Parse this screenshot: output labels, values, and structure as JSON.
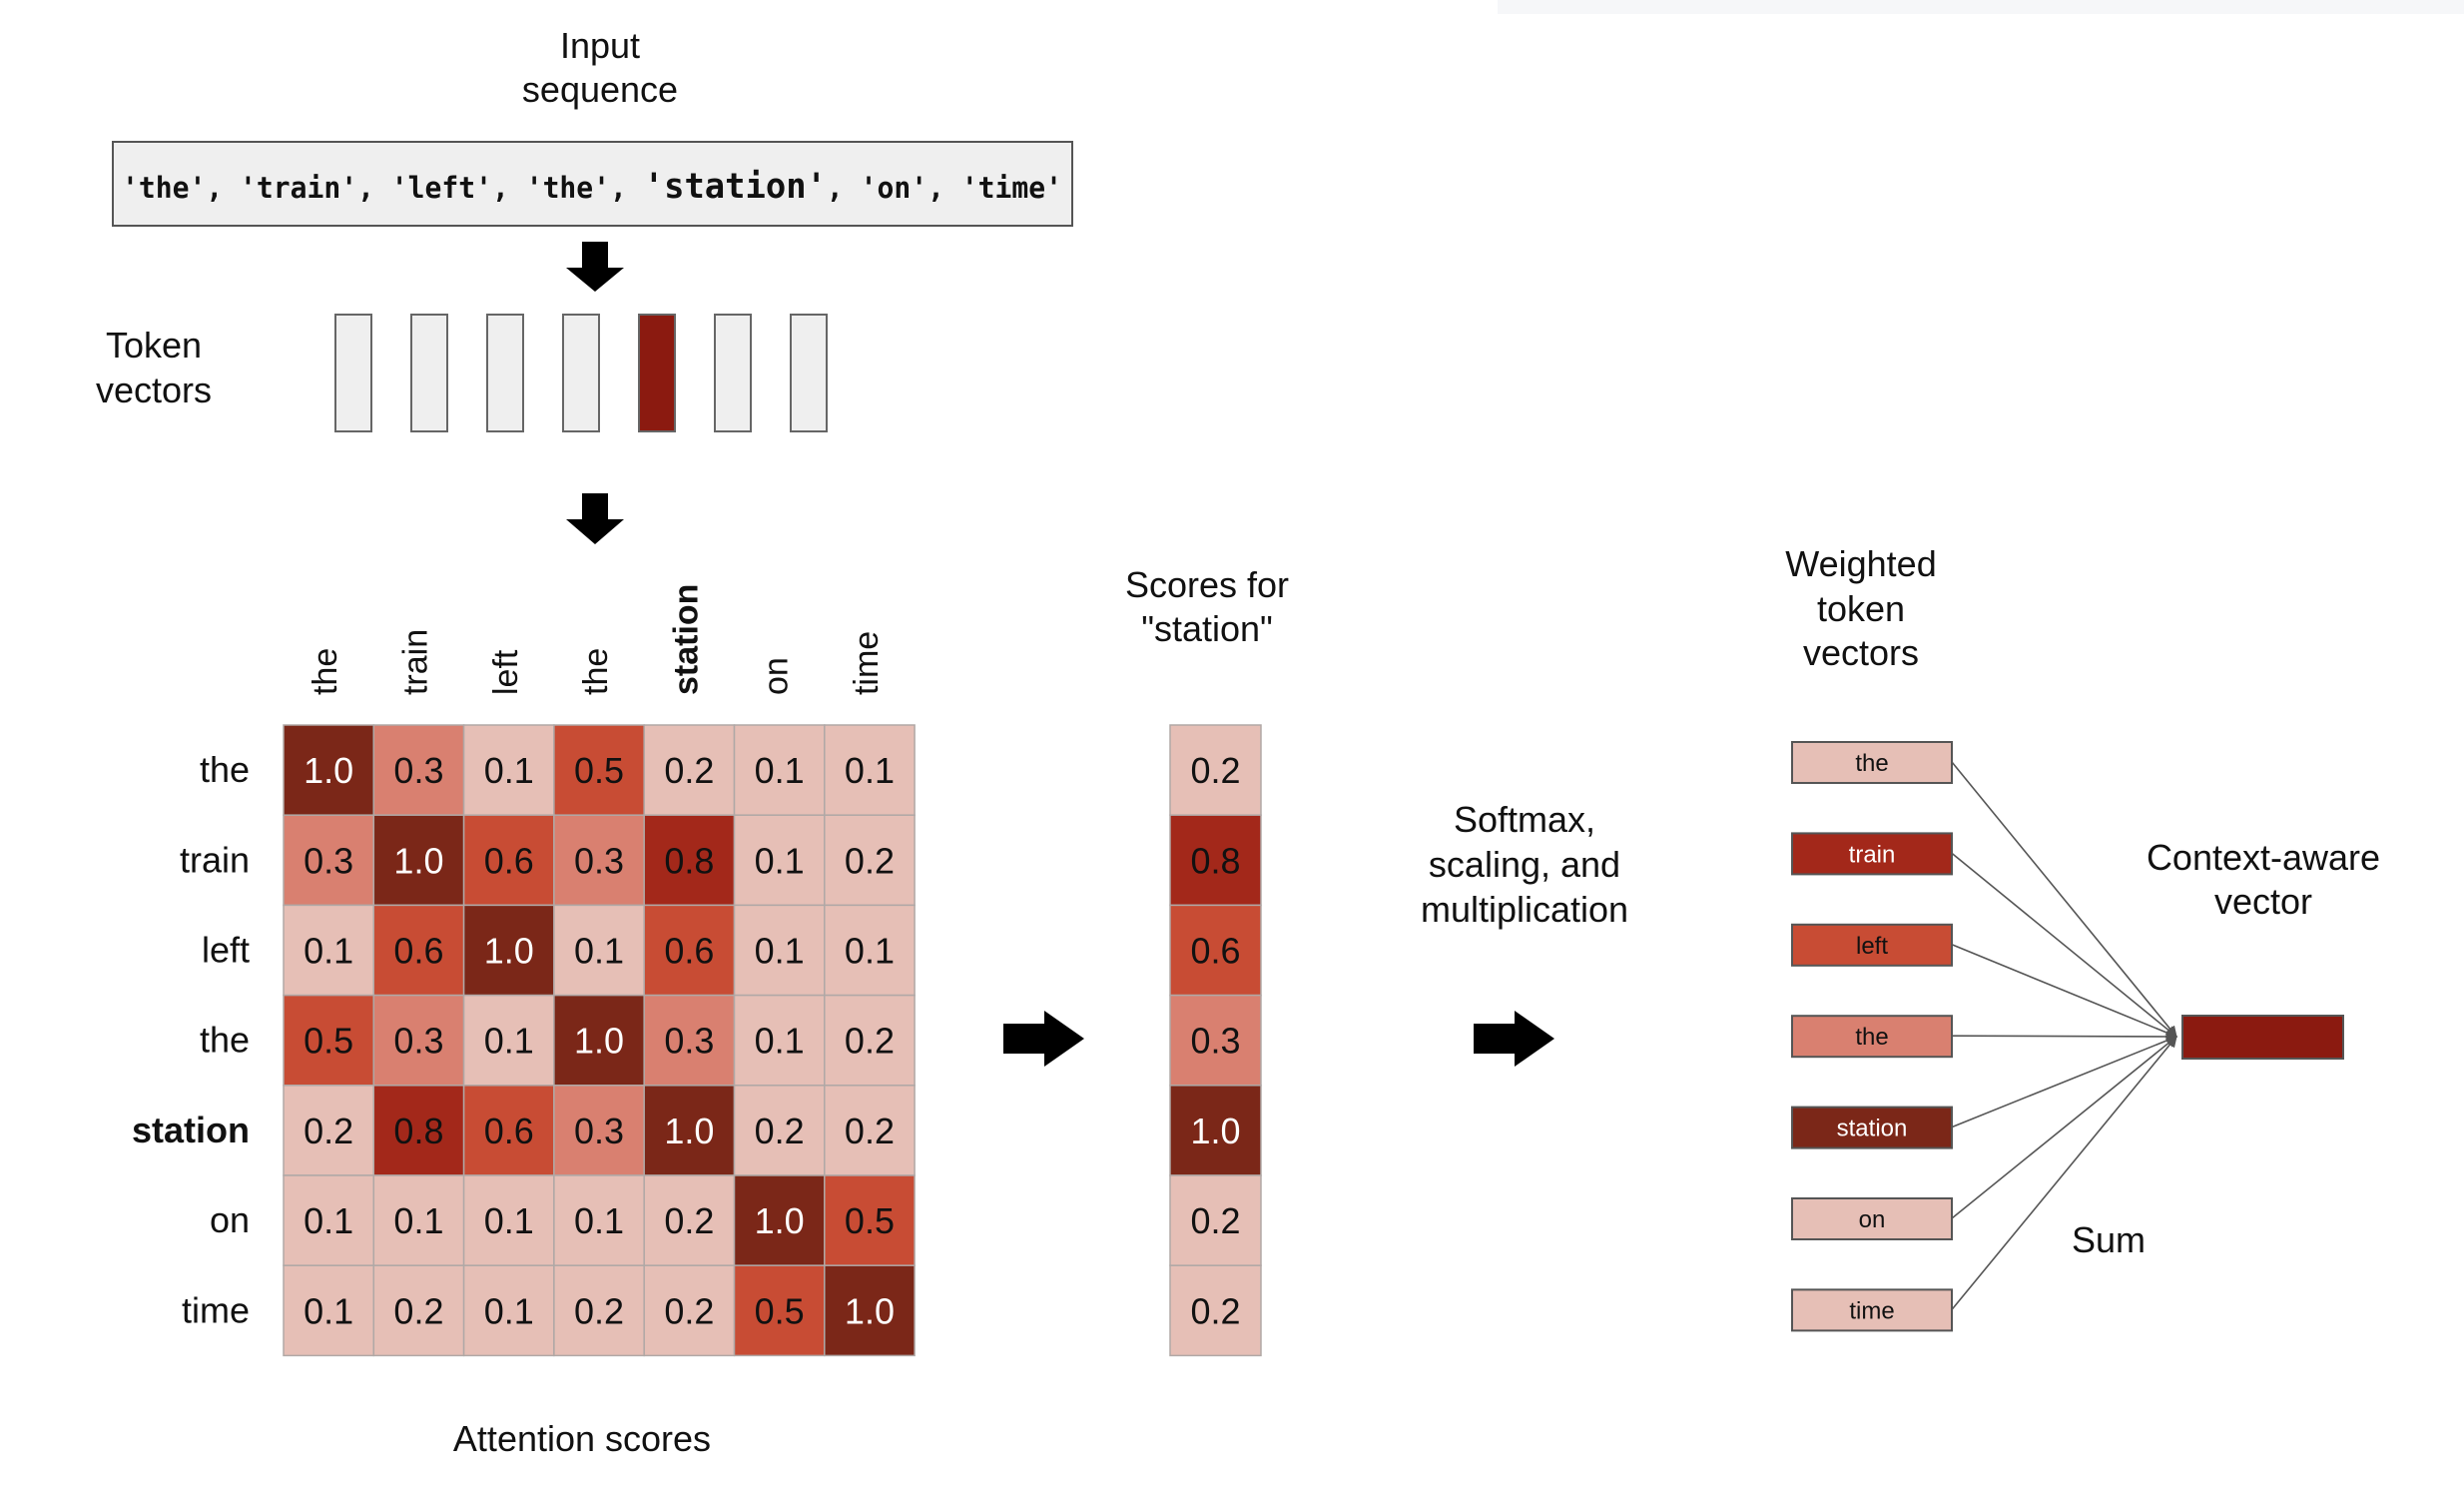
{
  "input_sequence": {
    "title_line1": "Input",
    "title_line2": "sequence",
    "tokens": [
      "'the'",
      "'train'",
      "'left'",
      "'the'",
      "'station'",
      "'on'",
      "'time'"
    ],
    "separator": ", ",
    "highlight_index": 4
  },
  "token_vectors": {
    "label_line1": "Token",
    "label_line2": "vectors",
    "count": 7,
    "highlight_index": 4
  },
  "attention_matrix": {
    "caption": "Attention scores",
    "column_labels": [
      "the",
      "train",
      "left",
      "the",
      "station",
      "on",
      "time"
    ],
    "row_labels": [
      "the",
      "train",
      "left",
      "the",
      "station",
      "on",
      "time"
    ],
    "bold_label_index": 4,
    "values": [
      [
        1.0,
        0.3,
        0.1,
        0.5,
        0.2,
        0.1,
        0.1
      ],
      [
        0.3,
        1.0,
        0.6,
        0.3,
        0.8,
        0.1,
        0.2
      ],
      [
        0.1,
        0.6,
        1.0,
        0.1,
        0.6,
        0.1,
        0.1
      ],
      [
        0.5,
        0.3,
        0.1,
        1.0,
        0.3,
        0.1,
        0.2
      ],
      [
        0.2,
        0.8,
        0.6,
        0.3,
        1.0,
        0.2,
        0.2
      ],
      [
        0.1,
        0.1,
        0.1,
        0.1,
        0.2,
        1.0,
        0.5
      ],
      [
        0.1,
        0.2,
        0.1,
        0.2,
        0.2,
        0.5,
        1.0
      ]
    ]
  },
  "station_scores": {
    "title_line1": "Scores for",
    "title_line2": "\"station\"",
    "values": [
      0.2,
      0.8,
      0.6,
      0.3,
      1.0,
      0.2,
      0.2
    ]
  },
  "softmax_step": {
    "line1": "Softmax,",
    "line2": "scaling, and",
    "line3": "multiplication"
  },
  "weighted_vectors": {
    "title_line1": "Weighted",
    "title_line2": "token",
    "title_line3": "vectors",
    "tokens": [
      "the",
      "train",
      "left",
      "the",
      "station",
      "on",
      "time"
    ],
    "weights": [
      0.2,
      0.8,
      0.6,
      0.3,
      1.0,
      0.2,
      0.2
    ]
  },
  "sum_label": "Sum",
  "context_vector": {
    "title_line1": "Context-aware",
    "title_line2": "vector"
  },
  "colors": {
    "level_0_1": "#e6bfb6",
    "level_0_2": "#e6bfb6",
    "level_0_3": "#d98070",
    "level_0_5": "#c84c34",
    "level_0_6": "#c84c34",
    "level_0_8": "#a3281a",
    "level_1_0": "#7b2718",
    "highlight": "#8b1a10",
    "neutral_fill": "#efefef",
    "neutral_stroke": "#666666",
    "cell_border": "#b0a8a6",
    "arrow": "#000000"
  }
}
